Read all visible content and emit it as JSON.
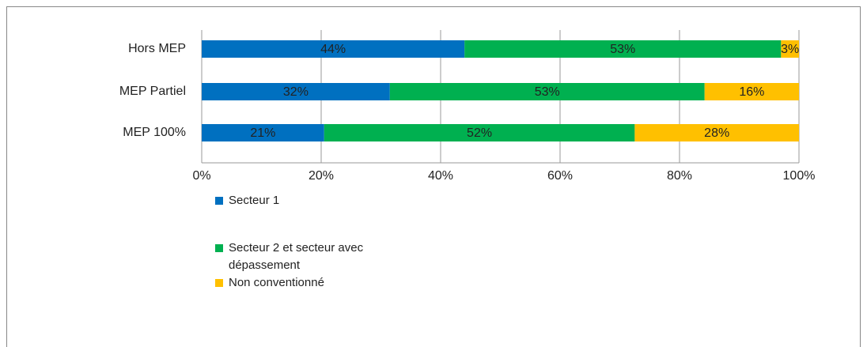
{
  "chart_data": {
    "type": "bar",
    "orientation": "horizontal",
    "stacked": true,
    "categories": [
      "Hors MEP",
      "MEP Partiel",
      "MEP 100%"
    ],
    "series": [
      {
        "name": "Secteur 1",
        "color": "#0070c0",
        "values": [
          44,
          31.5,
          20.5
        ],
        "value_labels": [
          "44%",
          "32%",
          "21%"
        ]
      },
      {
        "name": "Secteur 2 et secteur avec dépassement",
        "color": "#00b050",
        "values": [
          53,
          52.7,
          52
        ],
        "value_labels": [
          "53%",
          "53%",
          "52%"
        ]
      },
      {
        "name": "Non conventionné",
        "color": "#ffc000",
        "values": [
          3,
          15.8,
          27.5
        ],
        "value_labels": [
          "3%",
          "16%",
          "28%"
        ]
      }
    ],
    "xlim": [
      0,
      100
    ],
    "xticks": [
      {
        "value": 0,
        "label": "0%"
      },
      {
        "value": 20,
        "label": "20%"
      },
      {
        "value": 40,
        "label": "40%"
      },
      {
        "value": 60,
        "label": "60%"
      },
      {
        "value": 80,
        "label": "80%"
      },
      {
        "value": 100,
        "label": "100%"
      }
    ],
    "grid": true,
    "legend": "bottom-left"
  }
}
